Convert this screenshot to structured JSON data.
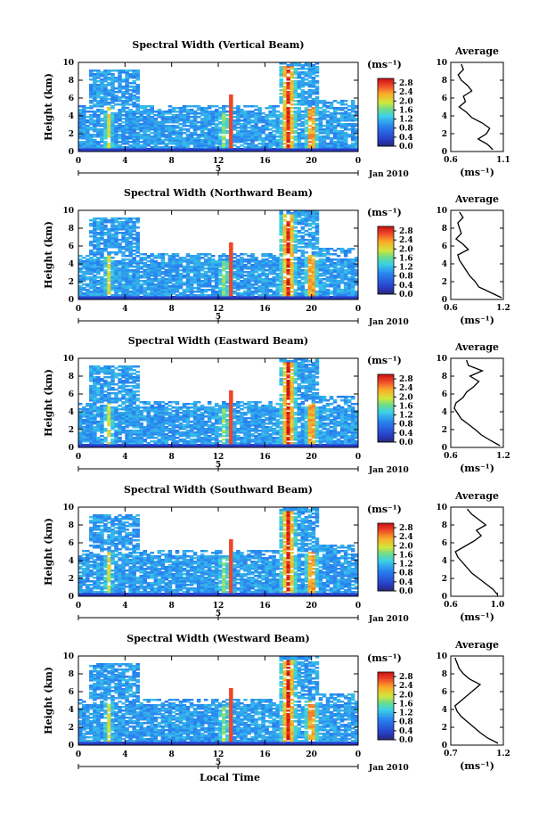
{
  "figure": {
    "x_axis_title": "Local Time",
    "date_label": "Jan 2010",
    "day_label": "5",
    "y_axis_title": "Height (km)",
    "avg_title": "Average",
    "colorbar_unit": "(ms⁻¹)",
    "avg_unit": "(ms⁻¹)"
  },
  "chart_data": [
    {
      "type": "heatmap",
      "title": "Spectral Width (Vertical Beam)",
      "ylabel": "Height (km)",
      "x_ticks": [
        "0",
        "4",
        "8",
        "12",
        "16",
        "20",
        "0"
      ],
      "y_ticks": [
        "0",
        "2",
        "4",
        "6",
        "8",
        "10"
      ],
      "xlim": [
        0,
        24
      ],
      "ylim": [
        0,
        10
      ],
      "colorbar": {
        "ticks": [
          "0.0",
          "0.4",
          "0.8",
          "1.2",
          "1.6",
          "2.0",
          "2.4",
          "2.8"
        ],
        "range": [
          0,
          3.0
        ]
      },
      "average": {
        "x_ticks": [
          "0.6",
          "1.1"
        ],
        "xlim": [
          0.6,
          1.1
        ],
        "xlabel": "(ms⁻¹)",
        "height": [
          0.2,
          0.8,
          1.4,
          2.0,
          2.6,
          3.2,
          3.8,
          4.4,
          5.0,
          5.6,
          6.2,
          6.8,
          7.4,
          8.0,
          8.6,
          9.2,
          9.8
        ],
        "value": [
          1.0,
          0.95,
          0.86,
          0.94,
          0.97,
          0.9,
          0.8,
          0.75,
          0.68,
          0.74,
          0.72,
          0.8,
          0.76,
          0.7,
          0.67,
          0.72,
          0.7
        ]
      }
    },
    {
      "type": "heatmap",
      "title": "Spectral Width (Northward Beam)",
      "ylabel": "Height (km)",
      "x_ticks": [
        "0",
        "4",
        "8",
        "12",
        "16",
        "20",
        "0"
      ],
      "y_ticks": [
        "0",
        "2",
        "4",
        "6",
        "8",
        "10"
      ],
      "xlim": [
        0,
        24
      ],
      "ylim": [
        0,
        10
      ],
      "colorbar": {
        "ticks": [
          "0.0",
          "0.4",
          "0.8",
          "1.2",
          "1.6",
          "2.0",
          "2.4",
          "2.8"
        ],
        "range": [
          0,
          3.0
        ]
      },
      "average": {
        "x_ticks": [
          "0.6",
          "1.2"
        ],
        "xlim": [
          0.6,
          1.2
        ],
        "xlabel": "(ms⁻¹)",
        "height": [
          0.2,
          0.8,
          1.4,
          2.0,
          2.6,
          3.2,
          3.8,
          4.4,
          5.0,
          5.6,
          6.2,
          6.8,
          7.4,
          8.0,
          8.6,
          9.2,
          9.8
        ],
        "value": [
          1.18,
          1.05,
          0.92,
          0.88,
          0.82,
          0.78,
          0.74,
          0.7,
          0.68,
          0.8,
          0.74,
          0.66,
          0.72,
          0.7,
          0.68,
          0.74,
          0.7
        ]
      }
    },
    {
      "type": "heatmap",
      "title": "Spectral Width (Eastward Beam)",
      "ylabel": "Height (km)",
      "x_ticks": [
        "0",
        "4",
        "8",
        "12",
        "16",
        "20",
        "0"
      ],
      "y_ticks": [
        "0",
        "2",
        "4",
        "6",
        "8",
        "10"
      ],
      "xlim": [
        0,
        24
      ],
      "ylim": [
        0,
        10
      ],
      "colorbar": {
        "ticks": [
          "0.0",
          "0.4",
          "0.8",
          "1.2",
          "1.6",
          "2.0",
          "2.4",
          "2.8"
        ],
        "range": [
          0,
          3.0
        ]
      },
      "average": {
        "x_ticks": [
          "0.6",
          "1.2"
        ],
        "xlim": [
          0.6,
          1.2
        ],
        "xlabel": "(ms⁻¹)",
        "height": [
          0.2,
          0.8,
          1.4,
          2.0,
          2.6,
          3.2,
          3.8,
          4.4,
          5.0,
          5.6,
          6.2,
          6.8,
          7.4,
          8.0,
          8.6,
          9.2,
          9.8
        ],
        "value": [
          1.16,
          1.05,
          0.95,
          0.88,
          0.8,
          0.72,
          0.68,
          0.64,
          0.66,
          0.74,
          0.78,
          0.86,
          0.92,
          0.82,
          0.96,
          0.8,
          0.78
        ]
      }
    },
    {
      "type": "heatmap",
      "title": "Spectral Width (Southward Beam)",
      "ylabel": "Height (km)",
      "x_ticks": [
        "0",
        "4",
        "8",
        "12",
        "16",
        "20",
        "0"
      ],
      "y_ticks": [
        "0",
        "2",
        "4",
        "6",
        "8",
        "10"
      ],
      "xlim": [
        0,
        24
      ],
      "ylim": [
        0,
        10
      ],
      "colorbar": {
        "ticks": [
          "0.0",
          "0.4",
          "0.8",
          "1.2",
          "1.6",
          "2.0",
          "2.4",
          "2.8"
        ],
        "range": [
          0,
          3.0
        ]
      },
      "average": {
        "x_ticks": [
          "0.6",
          "1.0"
        ],
        "xlim": [
          0.6,
          1.05
        ],
        "xlabel": "(ms⁻¹)",
        "height": [
          0.2,
          0.8,
          1.4,
          2.0,
          2.6,
          3.2,
          3.8,
          4.4,
          5.0,
          5.6,
          6.2,
          6.8,
          7.4,
          8.0,
          8.6,
          9.2,
          9.8
        ],
        "value": [
          1.0,
          0.96,
          0.9,
          0.84,
          0.78,
          0.74,
          0.7,
          0.66,
          0.64,
          0.72,
          0.8,
          0.86,
          0.82,
          0.9,
          0.84,
          0.78,
          0.74
        ]
      }
    },
    {
      "type": "heatmap",
      "title": "Spectral Width (Westward Beam)",
      "ylabel": "Height (km)",
      "x_ticks": [
        "0",
        "4",
        "8",
        "12",
        "16",
        "20",
        "0"
      ],
      "y_ticks": [
        "0",
        "2",
        "4",
        "6",
        "8",
        "10"
      ],
      "xlim": [
        0,
        24
      ],
      "ylim": [
        0,
        10
      ],
      "colorbar": {
        "ticks": [
          "0.0",
          "0.4",
          "0.8",
          "1.2",
          "1.6",
          "2.0",
          "2.4",
          "2.8"
        ],
        "range": [
          0,
          3.0
        ]
      },
      "average": {
        "x_ticks": [
          "0.7",
          "1.2"
        ],
        "xlim": [
          0.7,
          1.2
        ],
        "xlabel": "(ms⁻¹)",
        "height": [
          0.2,
          0.8,
          1.4,
          2.0,
          2.6,
          3.2,
          3.8,
          4.4,
          5.0,
          5.6,
          6.2,
          6.8,
          7.4,
          8.0,
          8.6,
          9.2,
          9.8
        ],
        "value": [
          1.15,
          1.05,
          0.98,
          0.92,
          0.86,
          0.8,
          0.76,
          0.74,
          0.8,
          0.86,
          0.92,
          0.98,
          0.88,
          0.82,
          0.78,
          0.76,
          0.74
        ]
      }
    }
  ]
}
